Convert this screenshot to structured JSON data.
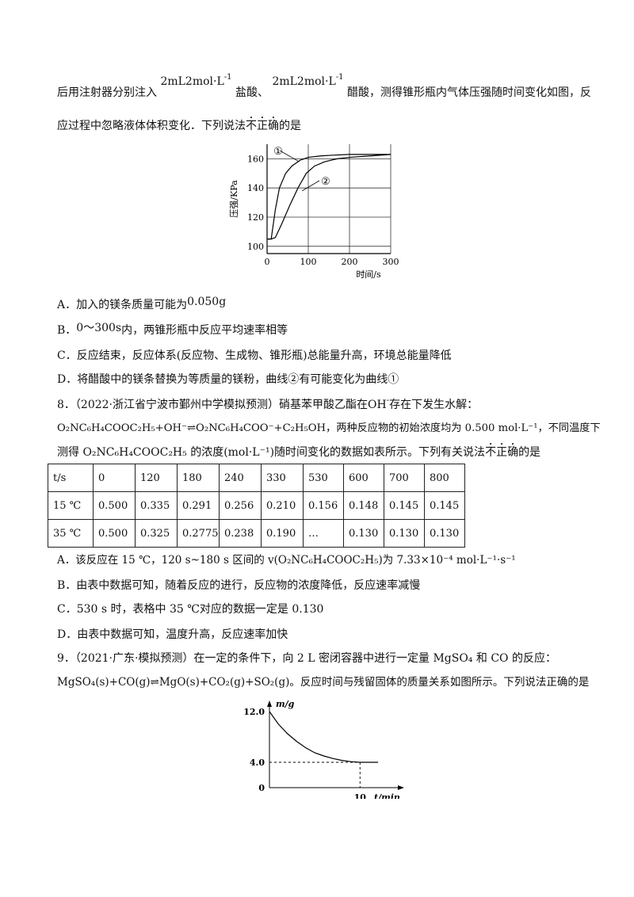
{
  "intro": {
    "l1_a": "后用注射器分别注入",
    "conc1": "2mL2mol·L",
    "conc_exp": "-1",
    "l1_acid1": "盐酸、",
    "conc2": "2mL2mol·L",
    "l1_b": "醋酸，测得锥形瓶内气体压强随时间变化如图，反",
    "l2_a": "应过程中忽略液体体积变化．下列说法",
    "l2_neg1": "不",
    "l2_neg2": "正",
    "l2_neg3": "确",
    "l2_b": "的是"
  },
  "chart1": {
    "chart_data": {
      "type": "line",
      "ylabel": "压强/KPa",
      "xlabel": "时间/s",
      "xlim": [
        0,
        300
      ],
      "ylim": [
        95,
        170
      ],
      "x_ticks": [
        "0",
        "100",
        "200",
        "300"
      ],
      "y_ticks": [
        "100",
        "120",
        "140",
        "160"
      ],
      "series": [
        {
          "name": "①",
          "x": [
            0,
            10,
            20,
            30,
            45,
            60,
            80,
            100,
            130,
            160,
            200,
            250,
            300
          ],
          "y": [
            105,
            105,
            125,
            140,
            150,
            155,
            159,
            161,
            162,
            162.5,
            163,
            163,
            163
          ]
        },
        {
          "name": "②",
          "x": [
            0,
            10,
            20,
            35,
            55,
            75,
            95,
            115,
            140,
            170,
            200,
            250,
            300
          ],
          "y": [
            105,
            105,
            106,
            115,
            128,
            140,
            150,
            155,
            158,
            160,
            161,
            162,
            163
          ]
        }
      ],
      "grid": true
    }
  },
  "q7_options": [
    {
      "text": "A．加入的镁条质量可能为",
      "formula": "0.050g"
    },
    {
      "text": "B．",
      "formula": "0～300s",
      "tail": "内，两锥形瓶中反应平均速率相等"
    },
    {
      "text": "C．反应结束，反应体系(反应物、生成物、锥形瓶)总能量升高，环境总能量降低"
    },
    {
      "text": "D．将醋酸中的镁条替换为等质量的镁粉，曲线②有可能变化为曲线①"
    }
  ],
  "q8": {
    "l1": "8．（2022·浙江省宁波市鄞州中学模拟预测）硝基苯甲酸乙酯在",
    "oh": "OH",
    "oh_sup": "-",
    "l1_tail": "存在下发生水解：",
    "l2": "O₂NC₆H₄COOC₂H₅+OH⁻⇌O₂NC₆H₄COO⁻+C₂H₅OH，两种反应物的初始浓度均为 0.500 mol·L⁻¹，不同温度下",
    "l3_a": "测得 O₂NC₆H₄COOC₂H₅ 的浓度(mol·L⁻¹)随时间变化的数据如表所示。下列有关说法",
    "l3_neg1": "不",
    "l3_neg2": "正",
    "l3_neg3": "确",
    "l3_b": "的是"
  },
  "table": {
    "header": [
      "t/s",
      "0",
      "120",
      "180",
      "240",
      "330",
      "530",
      "600",
      "700",
      "800"
    ],
    "rows": [
      [
        "15 ℃",
        "0.500",
        "0.335",
        "0.291",
        "0.256",
        "0.210",
        "0.156",
        "0.148",
        "0.145",
        "0.145"
      ],
      [
        "35 ℃",
        "0.500",
        "0.325",
        "0.2775",
        "0.238",
        "0.190",
        "…",
        "0.130",
        "0.130",
        "0.130"
      ]
    ]
  },
  "q8_options": [
    "A．该反应在 15 ℃，120 s~180 s 区间的 v(O₂NC₆H₄COOC₂H₅)为 7.33×10⁻⁴  mol·L⁻¹·s⁻¹",
    "B．由表中数据可知，随着反应的进行，反应物的浓度降低，反应速率减慢",
    "C．530 s 时，表格中 35 ℃对应的数据一定是 0.130",
    "D．由表中数据可知，温度升高，反应速率加快"
  ],
  "q9": {
    "l1": "9．（2021·广东·模拟预测）在一定的条件下，向 2 L 密闭容器中进行一定量 MgSO₄ 和 CO 的反应：",
    "l2": "MgSO₄(s)+CO(g)⇌MgO(s)+CO₂(g)+SO₂(g)。反应时间与残留固体的质量关系如图所示。下列说法正确的是"
  },
  "chart2": {
    "chart_data": {
      "type": "line",
      "ylabel": "m/g",
      "xlabel": "t/min",
      "xlim": [
        0,
        14
      ],
      "ylim": [
        0,
        12
      ],
      "y_ticks": [
        "12.0",
        "4.0",
        "0"
      ],
      "x_ticks": [
        "10"
      ],
      "series": [
        {
          "x": [
            0,
            1,
            2,
            3,
            4,
            5,
            6,
            7,
            8,
            9,
            10,
            12
          ],
          "y": [
            12.0,
            10.0,
            8.5,
            7.3,
            6.3,
            5.5,
            5.0,
            4.6,
            4.3,
            4.1,
            4.0,
            4.0
          ]
        }
      ],
      "grid": false
    }
  }
}
